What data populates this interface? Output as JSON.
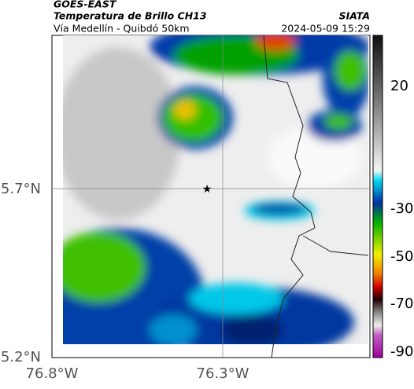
{
  "header": {
    "satellite": "GOES-EAST",
    "title": "Temperatura de Brillo CH13",
    "subtitle": "Vía Medellín - Quibdó 50km",
    "source": "SIATA",
    "datetime": "2024-05-09 15:29"
  },
  "map": {
    "lat_ticks": [
      "5.7°N",
      "5.2°N"
    ],
    "lon_ticks": [
      "76.8°W",
      "76.3°W"
    ]
  },
  "colorbar": {
    "ticks": [
      20,
      -30,
      -50,
      -70,
      -90
    ]
  }
}
